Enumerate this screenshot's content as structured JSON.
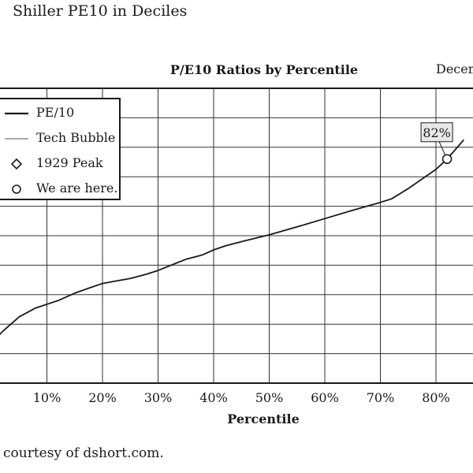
{
  "page_title": "Shiller PE10 in Deciles",
  "credit": "courtesy of dshort.com.",
  "chart_data": {
    "type": "line",
    "title": "P/E10 Ratios by Percentile",
    "date_label": "Decem",
    "xlabel": "Percentile",
    "ylabel": "",
    "x_ticks": [
      "10%",
      "20%",
      "30%",
      "40%",
      "50%",
      "60%",
      "70%",
      "80%"
    ],
    "xlim": [
      0,
      85
    ],
    "ylim": [
      0,
      10
    ],
    "grid": true,
    "legend_position": "top-left",
    "legend": [
      {
        "name": "PE/10",
        "marker": "line-thick"
      },
      {
        "name": "Tech Bubble",
        "marker": "line-thin"
      },
      {
        "name": "1929 Peak",
        "marker": "diamond"
      },
      {
        "name": "We are here.",
        "marker": "circle"
      }
    ],
    "series": [
      {
        "name": "PE/10",
        "x": [
          0,
          2,
          5,
          8,
          12,
          15,
          18,
          20,
          22,
          25,
          28,
          30,
          33,
          35,
          37,
          38,
          40,
          42,
          45,
          50,
          55,
          60,
          65,
          70,
          72,
          75,
          80,
          82,
          85
        ],
        "y": [
          1.35,
          1.75,
          2.25,
          2.55,
          2.8,
          3.05,
          3.25,
          3.38,
          3.45,
          3.55,
          3.7,
          3.82,
          4.05,
          4.2,
          4.3,
          4.35,
          4.52,
          4.65,
          4.8,
          5.03,
          5.3,
          5.58,
          5.86,
          6.13,
          6.25,
          6.6,
          7.25,
          7.6,
          8.25
        ]
      }
    ],
    "current": {
      "x": 82,
      "y": 7.6,
      "label": "82%"
    }
  }
}
